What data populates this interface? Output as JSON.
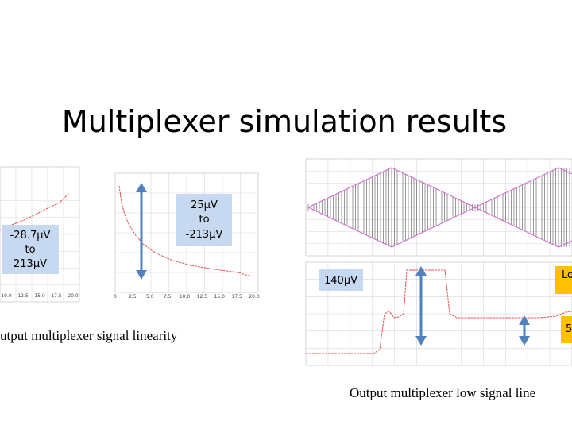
{
  "header": {
    "title": "Multiplexer simulation results"
  },
  "left_plot": {
    "xticks": [
      "10.0",
      "12.5",
      "15.0",
      "17.5",
      "20.0"
    ],
    "annotation": [
      "-28.7µV",
      "to",
      "213µV"
    ]
  },
  "middle_plot": {
    "xticks": [
      "0",
      "2.5",
      "5.0",
      "7.5",
      "10.0",
      "12.5",
      "15.0",
      "17.5",
      "20.0"
    ],
    "annotation": [
      "25µV",
      "to",
      "-213µV"
    ]
  },
  "left_caption": "utput multiplexer signal linearity",
  "right_plot": {
    "annotation_left": "140µV",
    "annotation_right_top": "Lo",
    "annotation_right_bottom": "5"
  },
  "right_caption": "Output multiplexer low signal line"
}
